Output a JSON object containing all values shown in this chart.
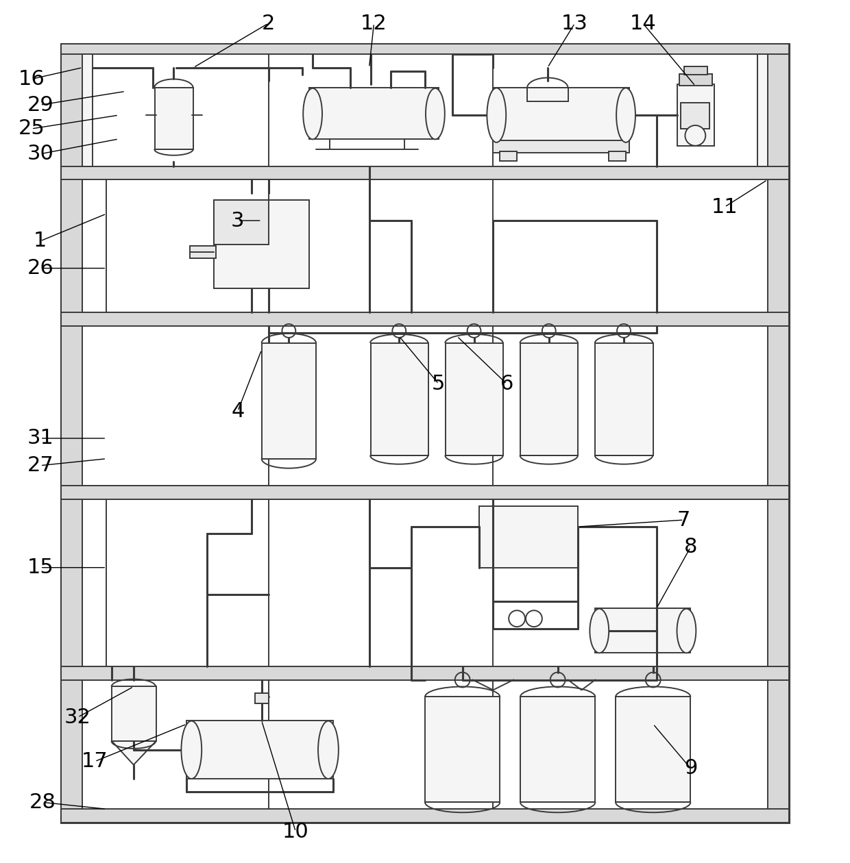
{
  "bg_color": "#ffffff",
  "lc": "#3a3a3a",
  "lw": 1.4,
  "lw2": 2.2,
  "fw": 12.4,
  "fh": 12.6
}
